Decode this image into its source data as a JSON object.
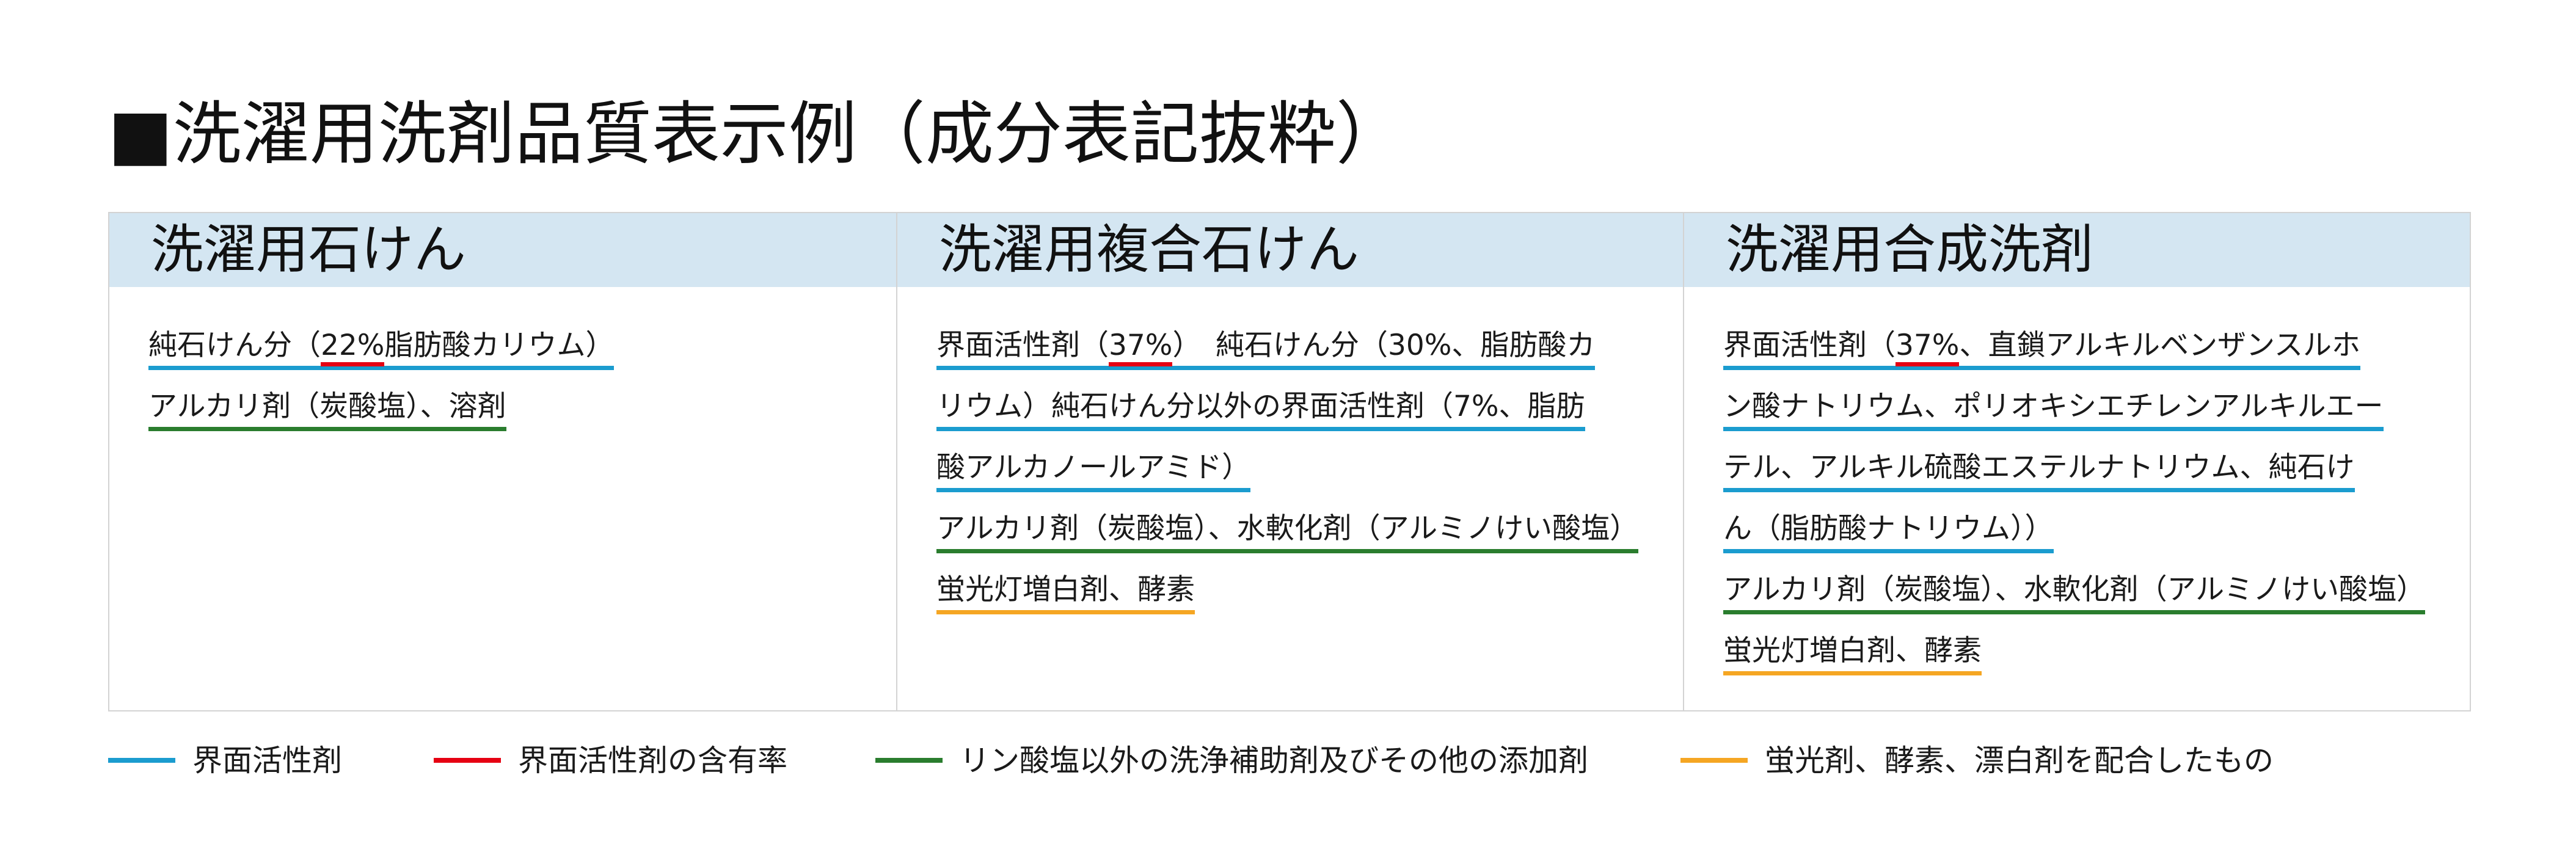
{
  "title": "■洗濯用洗剤品質表示例（成分表記抜粋）",
  "colors": {
    "header_background": "#d4e6f2",
    "border": "#d3d3d3"
  },
  "columns": [
    {
      "header": "洗濯用石けん",
      "lines": [
        {
          "underline_color": "#1b9ccf",
          "segments": [
            {
              "text": "純石けん分（"
            },
            {
              "text": "22%",
              "underline_color": "#e60012"
            },
            {
              "text": "脂肪酸カリウム）"
            }
          ]
        },
        {
          "underline_color": "#2a7d2e",
          "segments": [
            {
              "text": "アルカリ剤（炭酸塩）、溶剤"
            }
          ]
        }
      ]
    },
    {
      "header": "洗濯用複合石けん",
      "lines": [
        {
          "underline_color": "#1b9ccf",
          "segments": [
            {
              "text": "界面活性剤（"
            },
            {
              "text": "37%",
              "underline_color": "#e60012"
            },
            {
              "text": "）　純石けん分（30%、脂肪酸カ"
            }
          ]
        },
        {
          "underline_color": "#1b9ccf",
          "segments": [
            {
              "text": "リウム）純石けん分以外の界面活性剤（7%、脂肪"
            }
          ]
        },
        {
          "underline_color": "#1b9ccf",
          "segments": [
            {
              "text": "酸アルカノールアミド）"
            }
          ]
        },
        {
          "underline_color": "#2a7d2e",
          "segments": [
            {
              "text": "アルカリ剤（炭酸塩）、水軟化剤（アルミノけい酸塩）"
            }
          ]
        },
        {
          "underline_color": "#f5a623",
          "segments": [
            {
              "text": "蛍光灯増白剤、酵素"
            }
          ]
        }
      ]
    },
    {
      "header": "洗濯用合成洗剤",
      "lines": [
        {
          "underline_color": "#1b9ccf",
          "segments": [
            {
              "text": "界面活性剤（"
            },
            {
              "text": "37%",
              "underline_color": "#e60012"
            },
            {
              "text": "、直鎖アルキルベンザンスルホ"
            }
          ]
        },
        {
          "underline_color": "#1b9ccf",
          "segments": [
            {
              "text": "ン酸ナトリウム、ポリオキシエチレンアルキルエー"
            }
          ]
        },
        {
          "underline_color": "#1b9ccf",
          "segments": [
            {
              "text": "テル、アルキル硫酸エステルナトリウム、純石け"
            }
          ]
        },
        {
          "underline_color": "#1b9ccf",
          "segments": [
            {
              "text": "ん（脂肪酸ナトリウム））"
            }
          ]
        },
        {
          "underline_color": "#2a7d2e",
          "segments": [
            {
              "text": "アルカリ剤（炭酸塩）、水軟化剤（アルミノけい酸塩）"
            }
          ]
        },
        {
          "underline_color": "#f5a623",
          "segments": [
            {
              "text": "蛍光灯増白剤、酵素"
            }
          ]
        }
      ]
    }
  ],
  "legend": [
    {
      "line_color": "#1b9ccf",
      "label": "界面活性剤"
    },
    {
      "line_color": "#e60012",
      "label": "界面活性剤の含有率"
    },
    {
      "line_color": "#2a7d2e",
      "label": "リン酸塩以外の洗浄補助剤及びその他の添加剤"
    },
    {
      "line_color": "#f5a623",
      "label": "蛍光剤、酵素、漂白剤を配合したもの"
    }
  ]
}
